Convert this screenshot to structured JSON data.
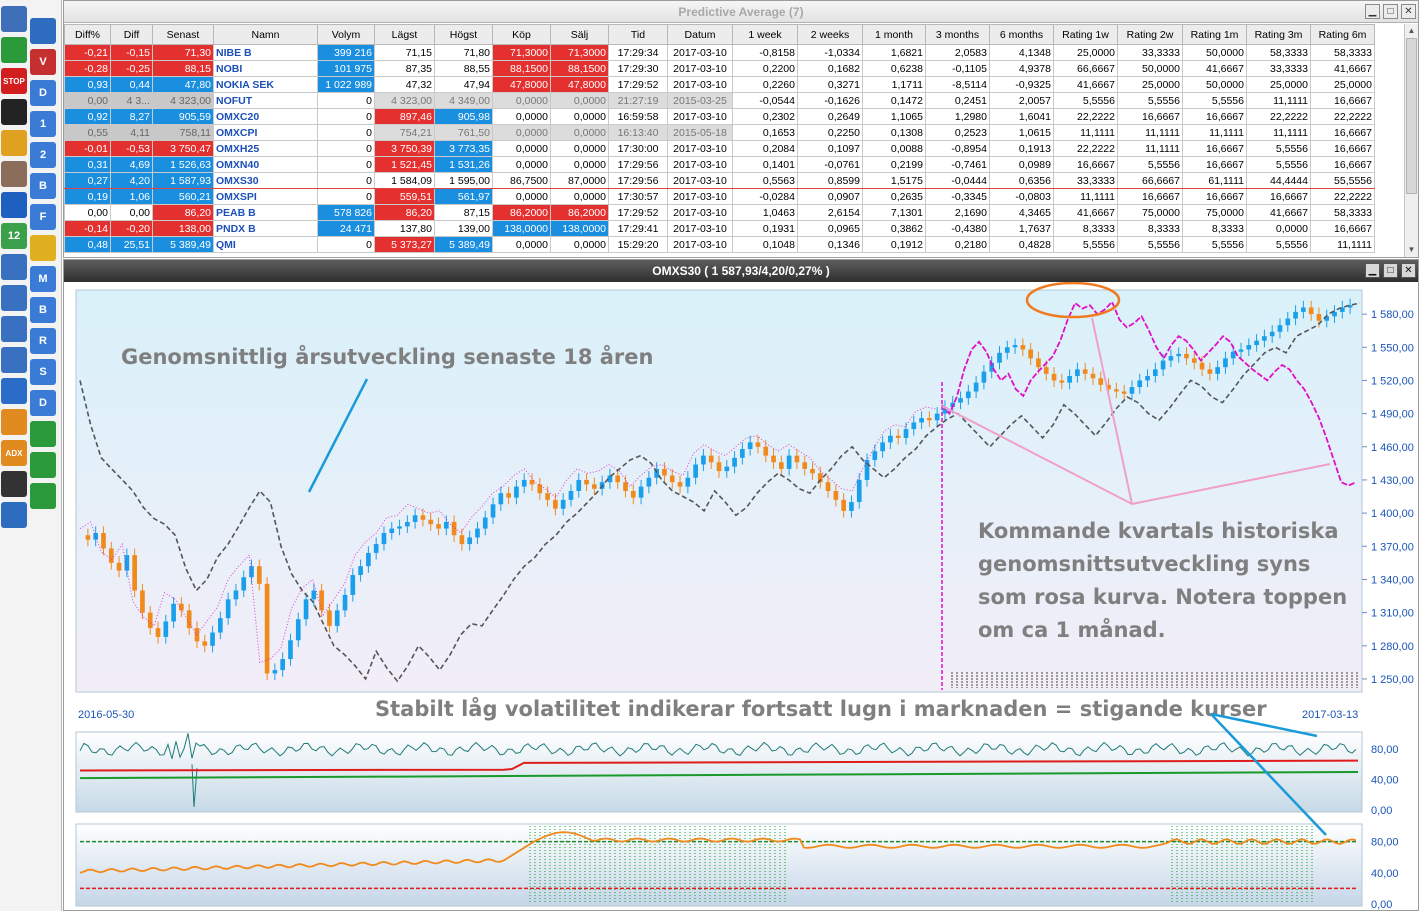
{
  "toolbar": {
    "buttons": [
      {
        "name": "tools-icon",
        "label": "",
        "color": "#3f6fb8"
      },
      {
        "name": "document-icon",
        "label": "",
        "color": "#2e6cc0"
      },
      {
        "name": "bar-chart-icon",
        "label": "",
        "color": "#2a9a3a"
      },
      {
        "name": "chart-v-icon",
        "label": "V",
        "color": "#c43030"
      },
      {
        "name": "stop-icon",
        "label": "STOP",
        "color": "#d21e1e"
      },
      {
        "name": "chart-d-icon",
        "label": "D",
        "color": "#3a7bd5"
      },
      {
        "name": "yin-yang-icon",
        "label": "",
        "color": "#222222"
      },
      {
        "name": "chart-1-icon",
        "label": "1",
        "color": "#3a7bd5"
      },
      {
        "name": "pin-icon",
        "label": "",
        "color": "#e0a020"
      },
      {
        "name": "chart-2-icon",
        "label": "2",
        "color": "#3a7bd5"
      },
      {
        "name": "avatar-icon",
        "label": "",
        "color": "#8a6d5a"
      },
      {
        "name": "chart-b-icon",
        "label": "B",
        "color": "#3a7bd5"
      },
      {
        "name": "phone-icon",
        "label": "",
        "color": "#1f5fbf"
      },
      {
        "name": "chart-f-icon",
        "label": "F",
        "color": "#3a7bd5"
      },
      {
        "name": "calendar-icon",
        "label": "12",
        "color": "#3aa04a"
      },
      {
        "name": "cycle-icon",
        "label": "",
        "color": "#e0b020"
      },
      {
        "name": "compass-1-icon",
        "label": "",
        "color": "#3a70c0"
      },
      {
        "name": "chart-m-icon",
        "label": "M",
        "color": "#3a7bd5"
      },
      {
        "name": "compass-2-icon",
        "label": "",
        "color": "#3a70c0"
      },
      {
        "name": "chart-b2-icon",
        "label": "B",
        "color": "#3a7bd5"
      },
      {
        "name": "compass-3-icon",
        "label": "",
        "color": "#3a70c0"
      },
      {
        "name": "chart-r-icon",
        "label": "R",
        "color": "#3a7bd5"
      },
      {
        "name": "compass-4-icon",
        "label": "",
        "color": "#3a70c0"
      },
      {
        "name": "chart-s-icon",
        "label": "S",
        "color": "#3a7bd5"
      },
      {
        "name": "anchor-icon",
        "label": "",
        "color": "#2a6cc8"
      },
      {
        "name": "chart-d2-icon",
        "label": "D",
        "color": "#3a7bd5"
      },
      {
        "name": "trend-line-icon",
        "label": "",
        "color": "#e08a20"
      },
      {
        "name": "bars-1-icon",
        "label": "",
        "color": "#2a9a3a"
      },
      {
        "name": "adx-icon",
        "label": "ADX",
        "color": "#e08a20"
      },
      {
        "name": "bars-2-icon",
        "label": "",
        "color": "#2a9a3a"
      },
      {
        "name": "wave-icon",
        "label": "",
        "color": "#333333"
      },
      {
        "name": "bars-3-icon",
        "label": "",
        "color": "#2a9a3a"
      },
      {
        "name": "page-icon",
        "label": "",
        "color": "#2e6cc0"
      }
    ]
  },
  "table_window": {
    "title": "Predictive Average (7)",
    "columns": [
      "Diff%",
      "Diff",
      "Senast",
      "Namn",
      "Volym",
      "Lägst",
      "Högst",
      "Köp",
      "Sälj",
      "Tid",
      "Datum",
      "1 week",
      "2 weeks",
      "1 month",
      "3 months",
      "6 months",
      "Rating 1w",
      "Rating 2w",
      "Rating 1m",
      "Rating 3m",
      "Rating 6m"
    ],
    "rows": [
      {
        "cells": [
          "-0,21",
          "-0,15",
          "71,30",
          "NIBE B",
          "399 216",
          "71,15",
          "71,80",
          "71,3000",
          "71,3000",
          "17:29:34",
          "2017-03-10",
          "-0,8158",
          "-1,0334",
          "1,6821",
          "2,0583",
          "4,1348",
          "25,0000",
          "33,3333",
          "50,0000",
          "58,3333",
          "58,3333"
        ],
        "state": "down",
        "vol": true,
        "kop": "red",
        "salj": "red"
      },
      {
        "cells": [
          "-0,28",
          "-0,25",
          "88,15",
          "NOBI",
          "101 975",
          "87,35",
          "88,55",
          "88,1500",
          "88,1500",
          "17:29:30",
          "2017-03-10",
          "0,2200",
          "0,1682",
          "0,6238",
          "-0,1105",
          "4,9378",
          "66,6667",
          "50,0000",
          "41,6667",
          "33,3333",
          "41,6667"
        ],
        "state": "down",
        "vol": true,
        "kop": "red",
        "salj": "red"
      },
      {
        "cells": [
          "0,93",
          "0,44",
          "47,80",
          "NOKIA SEK",
          "1 022 989",
          "47,32",
          "47,94",
          "47,8000",
          "47,8000",
          "17:29:52",
          "2017-03-10",
          "0,2260",
          "0,3271",
          "1,1711",
          "-8,5114",
          "-0,9325",
          "41,6667",
          "25,0000",
          "50,0000",
          "25,0000",
          "25,0000"
        ],
        "state": "up",
        "vol": true,
        "kop": "red",
        "salj": "red"
      },
      {
        "cells": [
          "0,00",
          "4 3...",
          "4 323,00",
          "NOFUT",
          "0",
          "4 323,00",
          "4 349,00",
          "0,0000",
          "0,0000",
          "21:27:19",
          "2015-03-25",
          "-0,0544",
          "-0,1626",
          "0,1472",
          "0,2451",
          "2,0057",
          "5,5556",
          "5,5556",
          "5,5556",
          "11,1111",
          "16,6667"
        ],
        "state": "stale"
      },
      {
        "cells": [
          "0,92",
          "8,27",
          "905,59",
          "OMXC20",
          "0",
          "897,46",
          "905,98",
          "0,0000",
          "0,0000",
          "16:59:58",
          "2017-03-10",
          "0,2302",
          "0,2649",
          "1,1065",
          "1,2980",
          "1,6041",
          "22,2222",
          "16,6667",
          "16,6667",
          "22,2222",
          "22,2222"
        ],
        "state": "up",
        "low": "red",
        "high": "blue"
      },
      {
        "cells": [
          "0,55",
          "4,11",
          "758,11",
          "OMXCPI",
          "0",
          "754,21",
          "761,50",
          "0,0000",
          "0,0000",
          "16:13:40",
          "2015-05-18",
          "0,1653",
          "0,2250",
          "0,1308",
          "0,2523",
          "1,0615",
          "11,1111",
          "11,1111",
          "11,1111",
          "11,1111",
          "16,6667"
        ],
        "state": "stale"
      },
      {
        "cells": [
          "-0,01",
          "-0,53",
          "3 750,47",
          "OMXH25",
          "0",
          "3 750,39",
          "3 773,35",
          "0,0000",
          "0,0000",
          "17:30:00",
          "2017-03-10",
          "0,2084",
          "0,1097",
          "0,0088",
          "-0,8954",
          "0,1913",
          "22,2222",
          "11,1111",
          "16,6667",
          "5,5556",
          "16,6667"
        ],
        "state": "down",
        "low": "red",
        "high": "blue"
      },
      {
        "cells": [
          "0,31",
          "4,69",
          "1 526,63",
          "OMXN40",
          "0",
          "1 521,45",
          "1 531,26",
          "0,0000",
          "0,0000",
          "17:29:56",
          "2017-03-10",
          "0,1401",
          "-0,0761",
          "0,2199",
          "-0,7461",
          "0,0989",
          "16,6667",
          "5,5556",
          "16,6667",
          "5,5556",
          "16,6667"
        ],
        "state": "up",
        "low": "red",
        "high": "blue"
      },
      {
        "cells": [
          "0,27",
          "4,20",
          "1 587,93",
          "OMXS30",
          "0",
          "1 584,09",
          "1 595,00",
          "86,7500",
          "87,0000",
          "17:29:56",
          "2017-03-10",
          "0,5563",
          "0,8599",
          "1,5175",
          "-0,0444",
          "0,6356",
          "33,3333",
          "66,6667",
          "61,1111",
          "44,4444",
          "55,5556"
        ],
        "state": "up",
        "selected": true
      },
      {
        "cells": [
          "0,19",
          "1,06",
          "560,21",
          "OMXSPI",
          "0",
          "559,51",
          "561,97",
          "0,0000",
          "0,0000",
          "17:30:57",
          "2017-03-10",
          "-0,0284",
          "0,0907",
          "0,2635",
          "-0,3345",
          "-0,0803",
          "11,1111",
          "16,6667",
          "16,6667",
          "16,6667",
          "22,2222"
        ],
        "state": "up",
        "low": "red",
        "high": "blue"
      },
      {
        "cells": [
          "0,00",
          "0,00",
          "86,20",
          "PEAB B",
          "578 826",
          "86,20",
          "87,15",
          "86,2000",
          "86,2000",
          "17:29:52",
          "2017-03-10",
          "1,0463",
          "2,6154",
          "7,1301",
          "2,1690",
          "4,3465",
          "41,6667",
          "75,0000",
          "75,0000",
          "41,6667",
          "58,3333"
        ],
        "state": "flat",
        "vol": true,
        "low": "red",
        "kop": "red",
        "salj": "red"
      },
      {
        "cells": [
          "-0,14",
          "-0,20",
          "138,00",
          "PNDX B",
          "24 471",
          "137,80",
          "139,00",
          "138,0000",
          "138,0000",
          "17:29:41",
          "2017-03-10",
          "0,1931",
          "0,0965",
          "0,3862",
          "-0,4380",
          "1,7637",
          "8,3333",
          "8,3333",
          "8,3333",
          "0,0000",
          "16,6667"
        ],
        "state": "down",
        "vol": true,
        "kop": "blue",
        "salj": "blue"
      },
      {
        "cells": [
          "0,48",
          "25,51",
          "5 389,49",
          "QMI",
          "0",
          "5 373,27",
          "5 389,49",
          "0,0000",
          "0,0000",
          "15:29:20",
          "2017-03-10",
          "0,1048",
          "0,1346",
          "0,1912",
          "0,2180",
          "0,4828",
          "5,5556",
          "5,5556",
          "5,5556",
          "5,5556",
          "11,1111"
        ],
        "state": "up",
        "low": "red",
        "high": "blue"
      }
    ]
  },
  "chart_window": {
    "title": "OMXS30 ( 1 587,93/4,20/0,27% )"
  },
  "colors": {
    "up_cell": "#1a8fe0",
    "down_cell": "#e53030",
    "stale_cell": "#c8c8c8",
    "candle_up": "#1aa0ea",
    "candle_down": "#f08a1c",
    "history_line": "#555555",
    "forecast_line": "#e010c8",
    "annotation_line": "#1a9ad8",
    "pink_pointer": "#f0a0c8"
  },
  "chart_data": [
    {
      "type": "line",
      "title": "",
      "x_start": "2016-05-30",
      "x_end": "2017-03-13",
      "ylim": [
        1240,
        1600
      ],
      "y_ticks": [
        "1 580,00",
        "1 550,00",
        "1 520,00",
        "1 490,00",
        "1 460,00",
        "1 430,00",
        "1 400,00",
        "1 370,00",
        "1 340,00",
        "1 310,00",
        "1 280,00",
        "1 250,00"
      ],
      "price_close": [
        1376,
        1382,
        1368,
        1355,
        1348,
        1362,
        1330,
        1310,
        1296,
        1288,
        1302,
        1318,
        1312,
        1296,
        1284,
        1280,
        1292,
        1305,
        1322,
        1330,
        1342,
        1352,
        1336,
        1255,
        1258,
        1268,
        1285,
        1304,
        1322,
        1330,
        1312,
        1298,
        1312,
        1326,
        1344,
        1352,
        1364,
        1372,
        1382,
        1386,
        1388,
        1392,
        1398,
        1394,
        1390,
        1386,
        1392,
        1380,
        1372,
        1378,
        1386,
        1396,
        1408,
        1418,
        1414,
        1424,
        1430,
        1426,
        1418,
        1412,
        1404,
        1412,
        1420,
        1430,
        1426,
        1422,
        1428,
        1434,
        1428,
        1420,
        1414,
        1424,
        1432,
        1440,
        1434,
        1428,
        1424,
        1432,
        1444,
        1452,
        1446,
        1438,
        1442,
        1450,
        1458,
        1464,
        1460,
        1452,
        1446,
        1440,
        1452,
        1446,
        1440,
        1436,
        1428,
        1420,
        1412,
        1402,
        1410,
        1430,
        1448,
        1456,
        1464,
        1470,
        1468,
        1476,
        1482,
        1486,
        1484,
        1490,
        1496,
        1500,
        1504,
        1510,
        1518,
        1528,
        1536,
        1545,
        1550,
        1552,
        1548,
        1540,
        1532,
        1526,
        1520,
        1518,
        1524,
        1530,
        1526,
        1522,
        1516,
        1512,
        1510,
        1508,
        1514,
        1520,
        1524,
        1530,
        1538,
        1542,
        1544,
        1540,
        1536,
        1530,
        1526,
        1532,
        1540,
        1546,
        1548,
        1552,
        1556,
        1560,
        1564,
        1570,
        1576,
        1582,
        1586,
        1580,
        1574,
        1578,
        1582,
        1586,
        1588
      ],
      "history_avg": [
        1520,
        1480,
        1450,
        1440,
        1430,
        1420,
        1405,
        1395,
        1390,
        1380,
        1350,
        1330,
        1340,
        1360,
        1372,
        1388,
        1405,
        1420,
        1410,
        1370,
        1345,
        1330,
        1320,
        1300,
        1280,
        1272,
        1262,
        1250,
        1275,
        1260,
        1248,
        1262,
        1280,
        1270,
        1258,
        1272,
        1290,
        1300,
        1298,
        1312,
        1325,
        1340,
        1352,
        1360,
        1372,
        1380,
        1392,
        1400,
        1410,
        1420,
        1432,
        1440,
        1448,
        1452,
        1445,
        1430,
        1420,
        1415,
        1410,
        1402,
        1420,
        1410,
        1398,
        1405,
        1418,
        1428,
        1436,
        1430,
        1422,
        1418,
        1430,
        1440,
        1452,
        1460,
        1448,
        1440,
        1432,
        1440,
        1450,
        1458,
        1470,
        1478,
        1485,
        1490,
        1480,
        1470,
        1460,
        1470,
        1480,
        1488,
        1478,
        1468,
        1480,
        1498,
        1490,
        1480,
        1470,
        1482,
        1495,
        1505,
        1500,
        1490,
        1484,
        1495,
        1508,
        1520,
        1515,
        1505,
        1500,
        1512,
        1525,
        1535,
        1545,
        1550,
        1545,
        1560,
        1565,
        1570,
        1580,
        1585,
        1588,
        1590
      ],
      "forecast": [
        1498,
        1490,
        1505,
        1530,
        1548,
        1555,
        1546,
        1530,
        1520,
        1526,
        1512,
        1506,
        1520,
        1528,
        1535,
        1542,
        1556,
        1575,
        1590,
        1585,
        1588,
        1580,
        1584,
        1591,
        1575,
        1568,
        1572,
        1578,
        1565,
        1550,
        1540,
        1552,
        1560,
        1556,
        1548,
        1538,
        1545,
        1552,
        1560,
        1555,
        1542,
        1536,
        1530,
        1525,
        1520,
        1528,
        1534,
        1530,
        1520,
        1512,
        1500,
        1486,
        1468,
        1448,
        1428,
        1425,
        1428
      ]
    },
    {
      "type": "line",
      "title": "",
      "ylim": [
        0,
        100
      ],
      "y_ticks": [
        "80,00",
        "40,00",
        "0,00"
      ],
      "series_green": [
        72,
        74,
        76,
        78,
        80
      ],
      "series_red": [
        52,
        53,
        54,
        62,
        65
      ]
    },
    {
      "type": "line",
      "title": "",
      "ylim": [
        0,
        100
      ],
      "y_ticks": [
        "80,00",
        "40,00",
        "0,00"
      ],
      "upper_level": 80,
      "lower_level": 20
    }
  ],
  "annotations": {
    "yearly": "Genomsnittlig årsutveckling senaste 18 åren",
    "quarter_line1": "Kommande kvartals historiska",
    "quarter_line2": "genomsnittsutveckling syns",
    "quarter_line3": "som rosa kurva. Notera toppen",
    "quarter_line4": "om ca 1 månad.",
    "volatility": "Stabilt låg volatilitet indikerar fortsatt lugn i marknaden = stigande kurser"
  }
}
